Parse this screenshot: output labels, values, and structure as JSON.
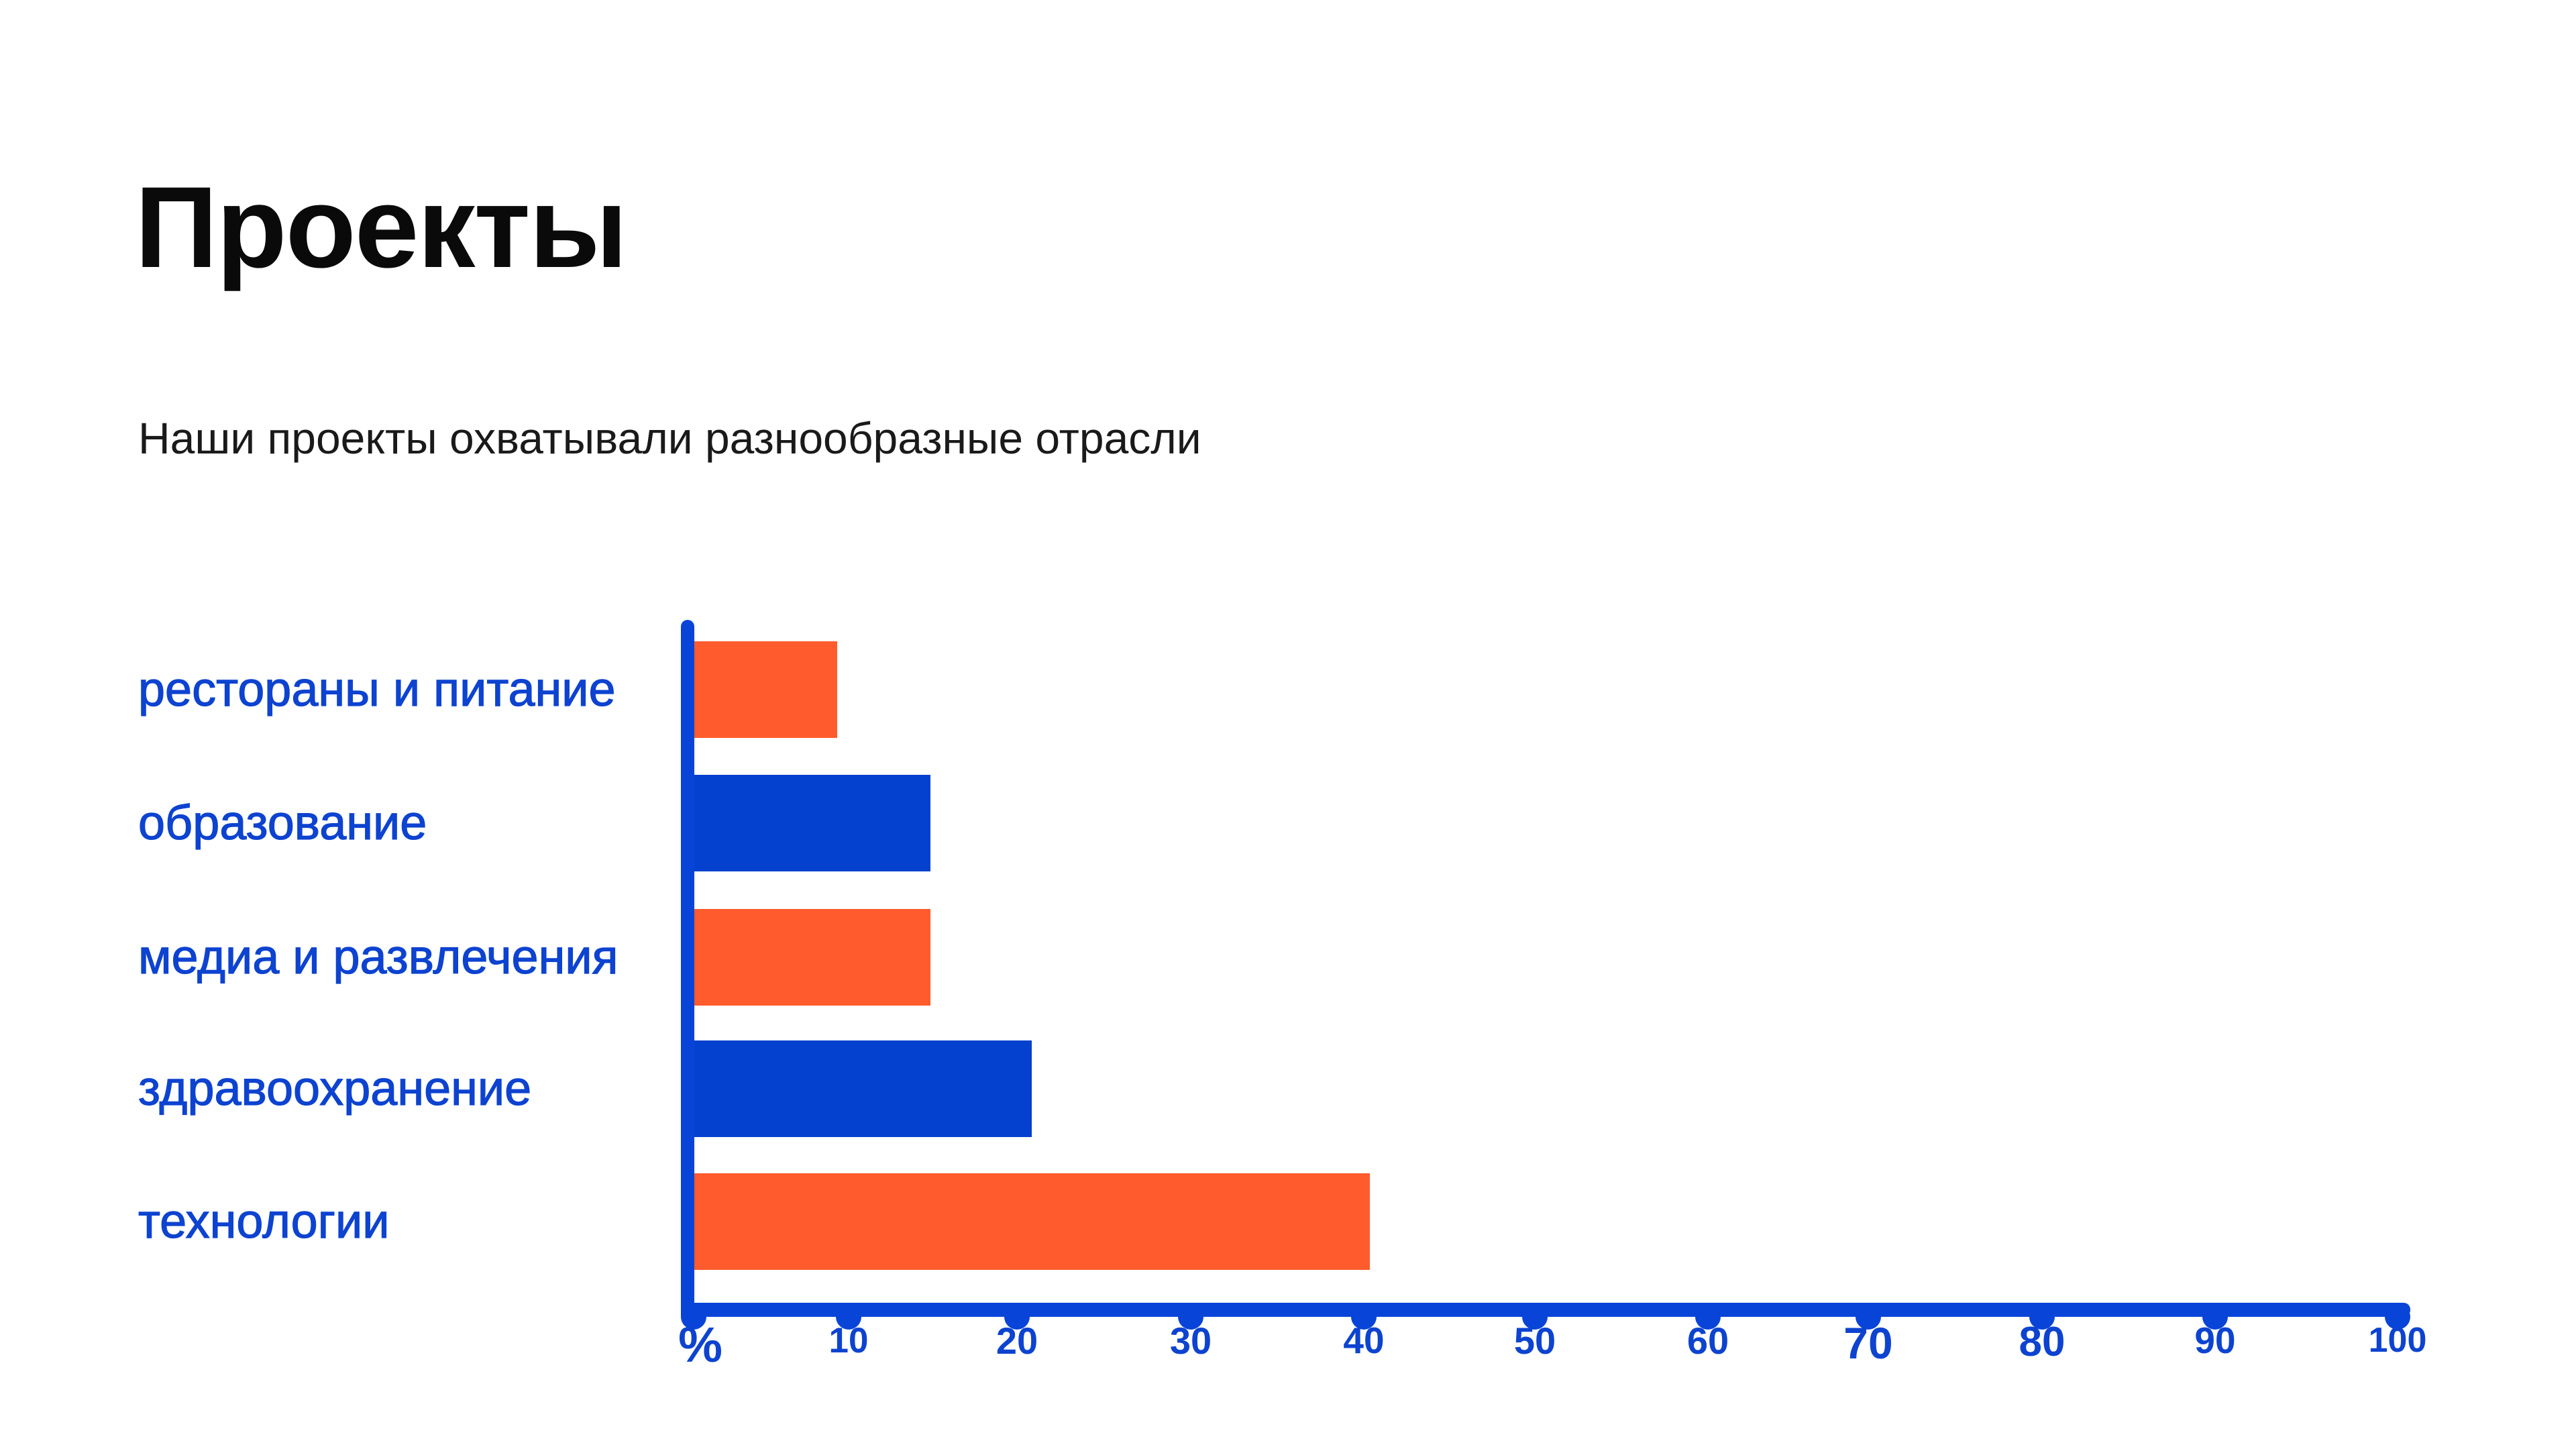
{
  "slide": {
    "title": "Проекты",
    "subtitle": "Наши проекты охватывали разнообразные отрасли"
  },
  "chart_data": {
    "type": "bar",
    "orientation": "horizontal",
    "title": "Проекты",
    "subtitle": "Наши проекты охватывали разнообразные отрасли",
    "categories": [
      "рестораны и питание",
      "образование",
      "медиа и развлечения",
      "здравоохранение",
      "технологии"
    ],
    "values": [
      8.5,
      14,
      14,
      20,
      40
    ],
    "value_unit": "%",
    "bar_colors": [
      "#FF5B2C",
      "#0441CE",
      "#FF5B2C",
      "#0441CE",
      "#FF5B2C"
    ],
    "x_ticks": [
      "%",
      "10",
      "20",
      "30",
      "40",
      "50",
      "60",
      "70",
      "80",
      "90",
      "100"
    ],
    "x_tick_values": [
      0,
      10,
      20,
      30,
      40,
      50,
      60,
      70,
      80,
      90,
      100
    ],
    "xlim": [
      0,
      100
    ],
    "xlabel": "%",
    "ylabel": "",
    "grid": "off",
    "legend": "none"
  },
  "colors": {
    "background": "#FFFFFF",
    "title_text": "#0A0A0A",
    "subtitle_text": "#1A1A1A",
    "category_label_blue": "#0D43D0",
    "axis_blue": "#0844D8",
    "bar_blue": "#0441CE",
    "bar_orange": "#FF5B2C"
  }
}
